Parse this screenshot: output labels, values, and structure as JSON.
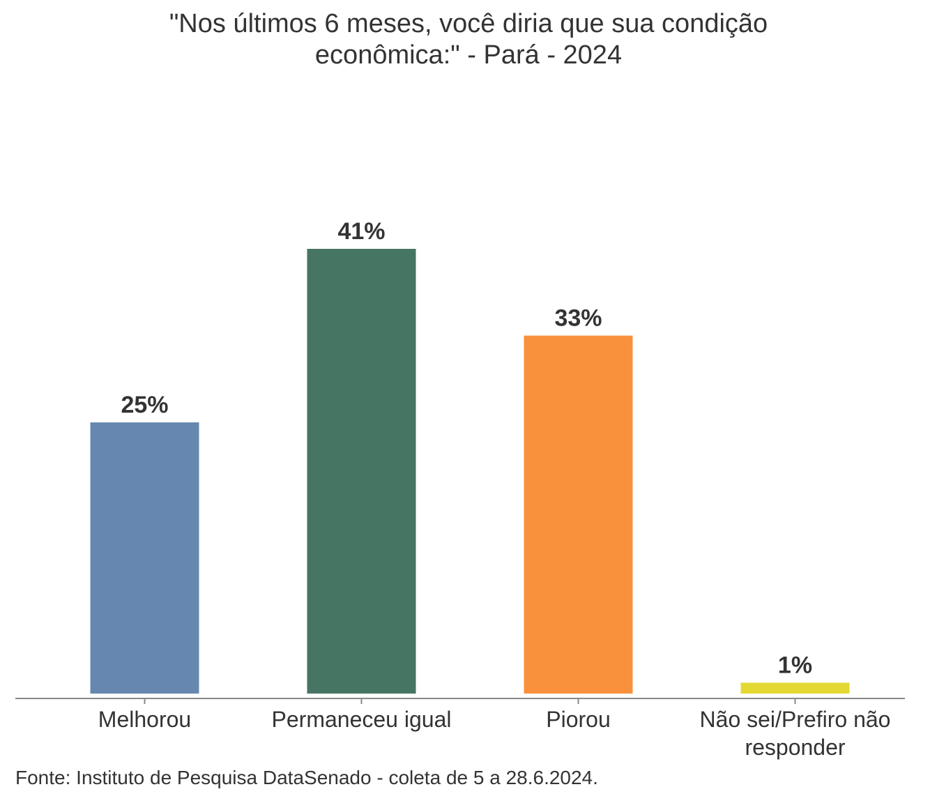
{
  "chart_data": {
    "type": "bar",
    "title": "\"Nos últimos 6 meses, você diria que sua condição econômica:\" - Pará - 2024",
    "categories": [
      "Melhorou",
      "Permaneceu igual",
      "Piorou",
      "Não sei/Prefiro não responder"
    ],
    "values": [
      25,
      41,
      33,
      1
    ],
    "value_labels": [
      "25%",
      "41%",
      "33%",
      "1%"
    ],
    "colors": [
      "#6688b0",
      "#467563",
      "#f9913c",
      "#e3d932"
    ],
    "source": "Fonte: Instituto de Pesquisa DataSenado - coleta de 5 a 28.6.2024."
  }
}
